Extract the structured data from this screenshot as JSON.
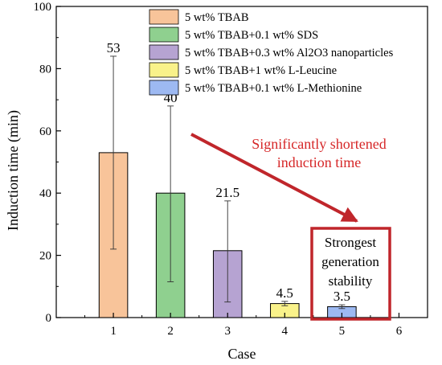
{
  "chart_data": {
    "type": "bar",
    "xlabel": "Case",
    "ylabel": "Induction time (min)",
    "xlim": [
      0,
      6.5
    ],
    "ylim": [
      0,
      100
    ],
    "x_ticks": [
      1,
      2,
      3,
      4,
      5,
      6
    ],
    "y_ticks": [
      0,
      20,
      40,
      60,
      80,
      100
    ],
    "grid": false,
    "legend_position": "top-center",
    "bars": [
      {
        "case": 1,
        "value": 53,
        "label": "53",
        "err_low": 22,
        "err_high": 84,
        "color": "#f8c49a"
      },
      {
        "case": 2,
        "value": 40,
        "label": "40",
        "err_low": 11.5,
        "err_high": 68,
        "color": "#8fd08f"
      },
      {
        "case": 3,
        "value": 21.5,
        "label": "21.5",
        "err_low": 5,
        "err_high": 37.5,
        "color": "#b6a3d2"
      },
      {
        "case": 4,
        "value": 4.5,
        "label": "4.5",
        "err_low": 3.8,
        "err_high": 5.2,
        "color": "#f9f28a"
      },
      {
        "case": 5,
        "value": 3.5,
        "label": "3.5",
        "err_low": 2.9,
        "err_high": 4.1,
        "color": "#9db9f2"
      }
    ],
    "series": [
      {
        "name": "5 wt% TBAB",
        "color": "#f8c49a"
      },
      {
        "name": "5 wt% TBAB+0.1 wt% SDS",
        "color": "#8fd08f"
      },
      {
        "name": "5 wt% TBAB+0.3 wt% Al2O3 nanoparticles",
        "color": "#b6a3d2"
      },
      {
        "name": "5 wt% TBAB+1 wt% L-Leucine",
        "color": "#f9f28a"
      },
      {
        "name": "5 wt% TBAB+0.1 wt% L-Methionine",
        "color": "#9db9f2"
      }
    ],
    "annotations": {
      "arrow_text_lines": [
        "Significantly shortened",
        "induction time"
      ],
      "box_text_lines": [
        "Strongest",
        "generation",
        "stability"
      ],
      "accent_color": "#c0262b"
    }
  }
}
